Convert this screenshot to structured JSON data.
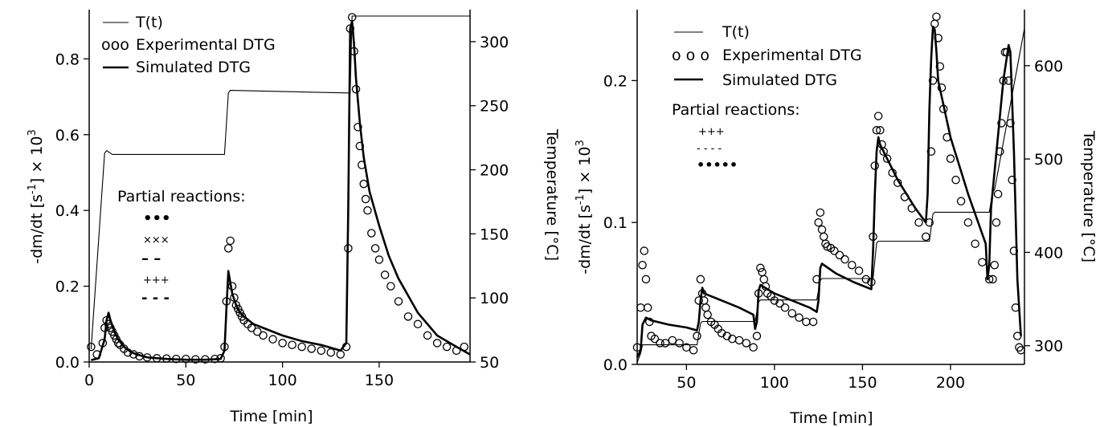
{
  "chart_data": [
    {
      "type": "line",
      "xlabel": "Time  [min]",
      "ylabel_left": "-dm/dt  [s-1]  × 103",
      "ylabel_right": "Temperature  [°C]",
      "xlim": [
        0,
        197
      ],
      "ylim": [
        0,
        0.93
      ],
      "y2lim": [
        50,
        325
      ],
      "xticks": [
        "0",
        "50",
        "100",
        "150"
      ],
      "yticks": [
        "0.0",
        "0.2",
        "0.4",
        "0.6",
        "0.8"
      ],
      "y2ticks": [
        "50",
        "100",
        "150",
        "200",
        "250",
        "300"
      ],
      "legend": {
        "t_label": "T(t)",
        "exp_label": "Experimental DTG",
        "sim_label": "Simulated DTG",
        "exp_marker": "ooo"
      },
      "partial_title": "Partial reactions:",
      "partial_markers": [
        "•••",
        "×××",
        "– –",
        "+++",
        "- - -"
      ],
      "series": [
        {
          "name": "T(t)",
          "axis": "right",
          "style": "thin",
          "x": [
            1,
            8,
            9,
            12,
            70,
            72,
            73,
            134,
            135,
            136,
            197
          ],
          "y": [
            60,
            213,
            215,
            212,
            212,
            260,
            262,
            260,
            260,
            320,
            320
          ]
        },
        {
          "name": "Experimental DTG",
          "axis": "left",
          "style": "circles",
          "x": [
            1,
            4,
            7,
            8,
            9,
            10,
            11,
            12,
            13,
            14,
            15,
            16,
            18,
            20,
            23,
            26,
            30,
            35,
            40,
            45,
            50,
            55,
            60,
            65,
            68,
            70,
            71,
            72,
            73,
            74,
            75,
            76,
            77,
            78,
            79,
            80,
            82,
            84,
            87,
            90,
            95,
            100,
            105,
            110,
            115,
            120,
            125,
            130,
            133,
            134,
            135,
            136,
            137,
            138,
            139,
            140,
            141,
            142,
            143,
            144,
            146,
            148,
            150,
            153,
            156,
            160,
            165,
            170,
            175,
            180,
            185,
            190,
            194
          ],
          "y": [
            0.04,
            0.02,
            0.05,
            0.09,
            0.11,
            0.1,
            0.09,
            0.08,
            0.07,
            0.06,
            0.05,
            0.045,
            0.035,
            0.025,
            0.02,
            0.015,
            0.012,
            0.01,
            0.009,
            0.008,
            0.008,
            0.007,
            0.007,
            0.008,
            0.01,
            0.04,
            0.16,
            0.3,
            0.32,
            0.2,
            0.17,
            0.15,
            0.14,
            0.13,
            0.12,
            0.11,
            0.1,
            0.09,
            0.08,
            0.07,
            0.06,
            0.05,
            0.045,
            0.04,
            0.035,
            0.03,
            0.025,
            0.02,
            0.04,
            0.3,
            0.88,
            0.91,
            0.82,
            0.72,
            0.62,
            0.57,
            0.52,
            0.47,
            0.43,
            0.4,
            0.34,
            0.3,
            0.27,
            0.23,
            0.2,
            0.16,
            0.12,
            0.1,
            0.07,
            0.05,
            0.04,
            0.03,
            0.04
          ]
        },
        {
          "name": "Simulated DTG",
          "axis": "left",
          "style": "thick",
          "x": [
            1,
            5,
            8,
            9,
            10,
            11,
            13,
            15,
            18,
            22,
            26,
            30,
            40,
            50,
            60,
            68,
            70,
            71,
            72,
            73,
            74,
            76,
            78,
            80,
            85,
            90,
            100,
            110,
            120,
            130,
            133,
            134,
            135,
            136,
            137,
            138,
            140,
            142,
            145,
            150,
            155,
            160,
            170,
            180,
            190,
            197
          ],
          "y": [
            0.005,
            0.01,
            0.06,
            0.11,
            0.13,
            0.11,
            0.08,
            0.06,
            0.04,
            0.025,
            0.018,
            0.012,
            0.008,
            0.006,
            0.006,
            0.008,
            0.03,
            0.14,
            0.24,
            0.21,
            0.18,
            0.15,
            0.13,
            0.12,
            0.1,
            0.09,
            0.07,
            0.055,
            0.045,
            0.03,
            0.05,
            0.4,
            0.88,
            0.9,
            0.84,
            0.75,
            0.63,
            0.54,
            0.45,
            0.36,
            0.28,
            0.22,
            0.13,
            0.07,
            0.04,
            0.02
          ]
        }
      ]
    },
    {
      "type": "line",
      "xlabel": "Time  [min]",
      "ylabel_left": "-dm/dt  [s-1]  × 103",
      "ylabel_right": "Temperature  [°C]",
      "xlim": [
        22,
        242
      ],
      "ylim": [
        0,
        0.25
      ],
      "y2lim": [
        280,
        660
      ],
      "xticks": [
        "50",
        "100",
        "150",
        "200"
      ],
      "yticks": [
        "0.0",
        "0.1",
        "0.2"
      ],
      "y2ticks": [
        "300",
        "400",
        "500",
        "600"
      ],
      "legend": {
        "t_label": "T(t)",
        "exp_label": "Experimental DTG",
        "sim_label": "Simulated DTG",
        "exp_marker": "o  o  o"
      },
      "partial_title": "Partial reactions:",
      "partial_markers": [
        "+++",
        "- - - -",
        "•••••"
      ],
      "series": [
        {
          "name": "T(t)",
          "axis": "right",
          "style": "thin",
          "x": [
            22,
            24,
            25,
            56,
            58,
            59,
            89,
            91,
            92,
            124,
            126,
            127,
            156,
            158,
            159,
            188,
            190,
            191,
            222,
            224,
            225,
            242
          ],
          "y": [
            282,
            292,
            301,
            301,
            324,
            326,
            326,
            347,
            349,
            349,
            370,
            372,
            372,
            410,
            412,
            412,
            441,
            443,
            443,
            465,
            467,
            640
          ]
        },
        {
          "name": "Experimental DTG",
          "axis": "left",
          "style": "circles",
          "x": [
            22,
            24,
            25,
            26,
            27,
            28,
            29,
            30,
            32,
            35,
            38,
            42,
            46,
            50,
            54,
            56,
            57,
            58,
            59,
            60,
            61,
            62,
            64,
            66,
            68,
            70,
            73,
            76,
            80,
            84,
            88,
            90,
            91,
            92,
            93,
            94,
            95,
            96,
            98,
            100,
            103,
            106,
            110,
            114,
            118,
            122,
            124,
            125,
            126,
            127,
            128,
            129,
            130,
            132,
            134,
            137,
            140,
            144,
            148,
            152,
            155,
            156,
            157,
            158,
            159,
            160,
            161,
            162,
            164,
            167,
            170,
            174,
            178,
            182,
            186,
            188,
            189,
            190,
            191,
            192,
            193,
            194,
            195,
            196,
            198,
            200,
            203,
            206,
            210,
            214,
            218,
            222,
            224,
            225,
            226,
            227,
            228,
            229,
            230,
            231,
            232,
            233,
            234,
            235,
            236,
            237,
            238,
            239,
            240
          ],
          "y": [
            0.012,
            0.04,
            0.07,
            0.08,
            0.06,
            0.04,
            0.03,
            0.02,
            0.018,
            0.015,
            0.015,
            0.017,
            0.015,
            0.012,
            0.01,
            0.02,
            0.045,
            0.06,
            0.05,
            0.045,
            0.04,
            0.035,
            0.03,
            0.028,
            0.025,
            0.022,
            0.02,
            0.018,
            0.017,
            0.015,
            0.012,
            0.02,
            0.05,
            0.068,
            0.065,
            0.06,
            0.055,
            0.05,
            0.048,
            0.045,
            0.043,
            0.04,
            0.036,
            0.033,
            0.03,
            0.03,
            0.06,
            0.1,
            0.107,
            0.095,
            0.09,
            0.085,
            0.083,
            0.082,
            0.08,
            0.077,
            0.074,
            0.07,
            0.066,
            0.06,
            0.058,
            0.09,
            0.14,
            0.165,
            0.175,
            0.165,
            0.155,
            0.15,
            0.145,
            0.135,
            0.128,
            0.118,
            0.11,
            0.1,
            0.09,
            0.1,
            0.15,
            0.2,
            0.24,
            0.245,
            0.23,
            0.21,
            0.195,
            0.18,
            0.16,
            0.145,
            0.13,
            0.115,
            0.1,
            0.085,
            0.072,
            0.06,
            0.06,
            0.07,
            0.1,
            0.12,
            0.15,
            0.17,
            0.2,
            0.22,
            0.22,
            0.2,
            0.17,
            0.13,
            0.08,
            0.04,
            0.02,
            0.012,
            0.01
          ]
        },
        {
          "name": "Simulated DTG",
          "axis": "left",
          "style": "thick",
          "x": [
            22,
            24,
            25,
            27,
            30,
            40,
            50,
            56,
            57,
            58,
            59,
            60,
            70,
            80,
            88,
            89,
            90,
            91,
            92,
            100,
            110,
            120,
            124,
            125,
            126,
            127,
            135,
            145,
            155,
            156,
            157,
            158,
            159,
            160,
            170,
            180,
            186,
            187,
            188,
            189,
            190,
            191,
            192,
            193,
            200,
            210,
            220,
            221,
            222,
            223,
            230,
            233,
            234,
            236,
            238,
            240
          ],
          "y": [
            0.005,
            0.01,
            0.028,
            0.033,
            0.031,
            0.028,
            0.026,
            0.024,
            0.03,
            0.045,
            0.054,
            0.05,
            0.045,
            0.04,
            0.035,
            0.025,
            0.03,
            0.052,
            0.056,
            0.05,
            0.045,
            0.04,
            0.037,
            0.045,
            0.068,
            0.071,
            0.064,
            0.058,
            0.053,
            0.08,
            0.12,
            0.15,
            0.16,
            0.155,
            0.13,
            0.11,
            0.1,
            0.12,
            0.18,
            0.215,
            0.238,
            0.236,
            0.22,
            0.2,
            0.16,
            0.12,
            0.085,
            0.06,
            0.07,
            0.11,
            0.2,
            0.225,
            0.22,
            0.15,
            0.06,
            0.02
          ]
        }
      ]
    }
  ]
}
